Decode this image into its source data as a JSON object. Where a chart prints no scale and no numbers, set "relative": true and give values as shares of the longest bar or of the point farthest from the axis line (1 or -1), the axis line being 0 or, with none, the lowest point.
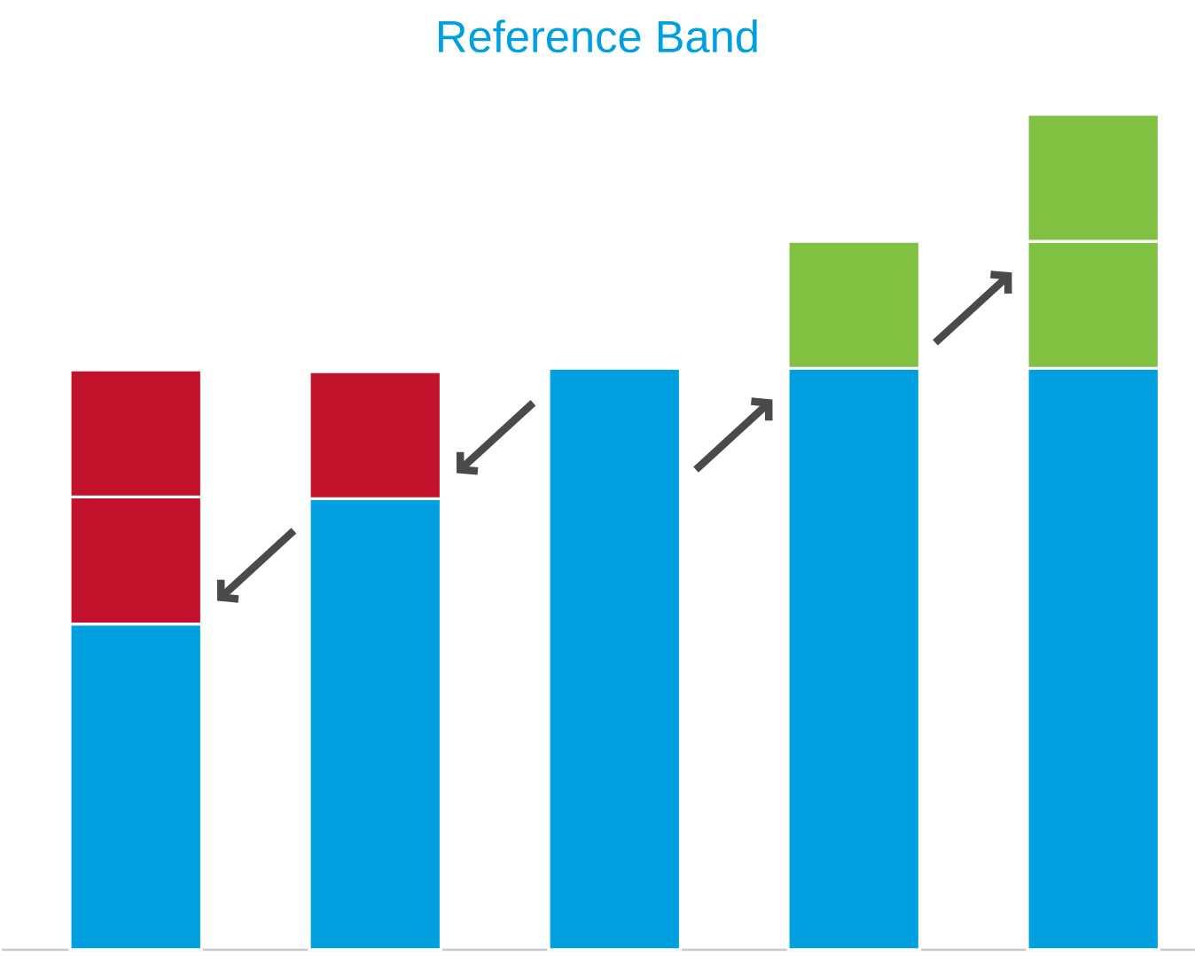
{
  "chart_data": {
    "type": "bar",
    "title": "Reference Band",
    "relative": true,
    "stacked": true,
    "categories": [
      null,
      null,
      null,
      null,
      null
    ],
    "series": [
      {
        "color": "#00a0e0",
        "values": [
          0.39,
          0.54,
          0.696,
          0.696,
          0.696
        ]
      },
      {
        "color": "#c3122b",
        "values": [
          0.152,
          0.152,
          null,
          null,
          null
        ]
      },
      {
        "color": "#c3122b",
        "values": [
          0.152,
          null,
          null,
          null,
          null
        ]
      },
      {
        "color": "#80c142",
        "values": [
          null,
          null,
          null,
          0.152,
          0.152
        ]
      },
      {
        "color": "#80c142",
        "values": [
          null,
          null,
          null,
          null,
          0.152
        ]
      }
    ]
  }
}
